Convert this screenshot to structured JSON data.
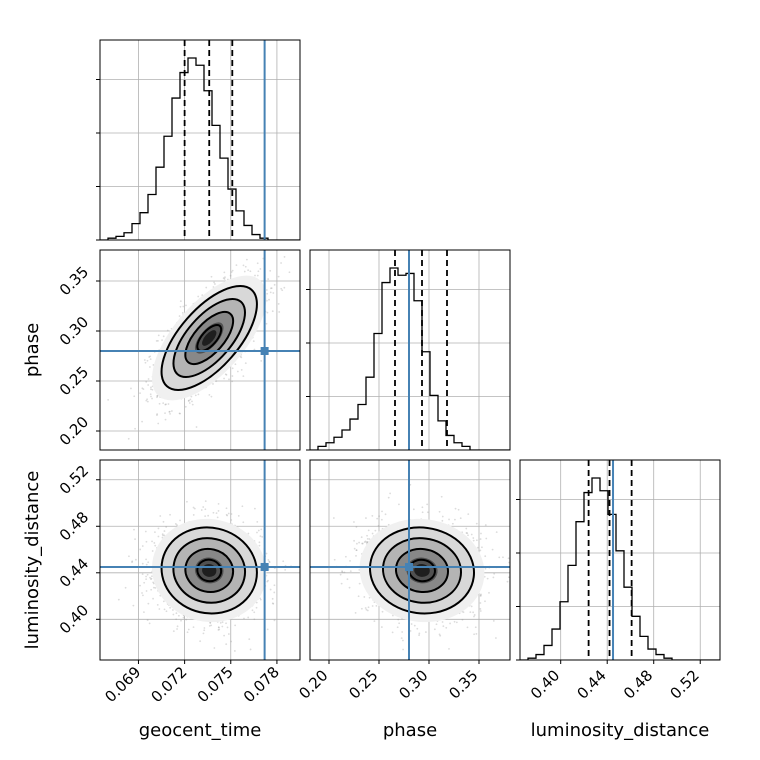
{
  "chart_data": {
    "type": "corner",
    "parameters": [
      "geocent_time",
      "phase",
      "luminosity_distance"
    ],
    "truths": {
      "geocent_time": 0.0772,
      "phase": 0.28,
      "luminosity_distance": 0.445
    },
    "quantiles": {
      "geocent_time": [
        0.072,
        0.0736,
        0.0751
      ],
      "phase": [
        0.266,
        0.293,
        0.318
      ],
      "luminosity_distance": [
        0.424,
        0.442,
        0.461
      ]
    },
    "ranges": {
      "geocent_time": [
        0.0665,
        0.0795
      ],
      "phase": [
        0.181,
        0.381
      ],
      "luminosity_distance": [
        0.365,
        0.537
      ]
    },
    "ticks": {
      "geocent_time": [
        0.069,
        0.072,
        0.075,
        0.078
      ],
      "phase": [
        0.2,
        0.25,
        0.3,
        0.35
      ],
      "luminosity_distance": [
        0.4,
        0.44,
        0.48,
        0.52
      ]
    },
    "tick_labels": {
      "geocent_time": [
        "0.069",
        "0.072",
        "0.075",
        "0.078"
      ],
      "phase": [
        "0.20",
        "0.25",
        "0.30",
        "0.35"
      ],
      "luminosity_distance": [
        "0.40",
        "0.44",
        "0.48",
        "0.52"
      ]
    },
    "hist": {
      "geocent_time": [
        0,
        1,
        2,
        4,
        9,
        15,
        25,
        40,
        57,
        78,
        92,
        100,
        96,
        82,
        63,
        45,
        28,
        16,
        8,
        3,
        1,
        0,
        0,
        0,
        0
      ],
      "phase": [
        0,
        2,
        4,
        7,
        11,
        17,
        25,
        40,
        64,
        92,
        100,
        96,
        97,
        82,
        54,
        30,
        16,
        8,
        4,
        2,
        0,
        0,
        0,
        0,
        0
      ],
      "luminosity_distance": [
        0,
        1,
        3,
        8,
        17,
        32,
        52,
        76,
        92,
        100,
        93,
        80,
        60,
        40,
        24,
        13,
        6,
        3,
        1,
        0,
        0,
        0,
        0,
        0,
        0
      ]
    },
    "correlations": {
      "phase|geocent_time": 0.65,
      "luminosity_distance|geocent_time": -0.05,
      "luminosity_distance|phase": -0.05
    },
    "grid": true
  }
}
